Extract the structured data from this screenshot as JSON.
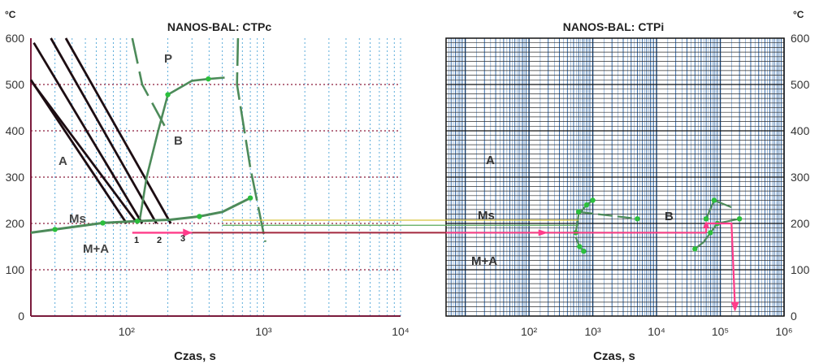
{
  "chart_data": [
    {
      "type": "line",
      "title": "NANOS-BAL: CTPc",
      "xlabel": "Czas, s",
      "ylabel": "°C",
      "xscale": "log",
      "xlim": [
        20,
        10000
      ],
      "ylim": [
        0,
        600
      ],
      "y_ticks": [
        "0",
        "100",
        "200",
        "300",
        "400",
        "500",
        "600"
      ],
      "x_ticks": [
        {
          "exp": 2,
          "label": "10²"
        },
        {
          "exp": 3,
          "label": "10³"
        },
        {
          "exp": 4,
          "label": "10⁴"
        }
      ],
      "grid": true,
      "regions": [
        "P",
        "B",
        "A",
        "Ms",
        "M+A"
      ],
      "cooling_curve_labels": [
        "1",
        "2",
        "3"
      ],
      "series": [
        {
          "values": [
            [
              21,
              590
            ],
            [
              130,
              200
            ]
          ]
        },
        {
          "values": [
            [
              28,
              600
            ],
            [
              165,
              200
            ]
          ]
        },
        {
          "values": [
            [
              20,
              510
            ],
            [
              100,
              200
            ]
          ]
        },
        {
          "values": [
            [
              36,
              600
            ],
            [
              210,
              200
            ]
          ]
        },
        {
          "values": [
            [
              21,
              500
            ],
            [
              120,
              200
            ]
          ]
        }
      ],
      "ms_curve": [
        [
          20,
          180
        ],
        [
          30,
          187
        ],
        [
          67,
          201
        ],
        [
          120,
          205
        ],
        [
          210,
          208
        ],
        [
          340,
          215
        ],
        [
          500,
          225
        ],
        [
          800,
          255
        ]
      ],
      "bainite_start": [
        [
          125,
          210
        ],
        [
          140,
          300
        ],
        [
          170,
          400
        ],
        [
          200,
          478
        ],
        [
          300,
          508
        ],
        [
          395,
          512
        ],
        [
          520,
          515
        ]
      ],
      "pearlite_start": [
        [
          110,
          600
        ],
        [
          130,
          500
        ],
        [
          190,
          410
        ]
      ],
      "transformation_end": [
        [
          650,
          600
        ],
        [
          640,
          500
        ],
        [
          800,
          320
        ],
        [
          1030,
          160
        ]
      ],
      "arrow_t": [
        [
          110,
          180
        ],
        [
          300,
          180
        ]
      ]
    },
    {
      "type": "line",
      "title": "NANOS-BAL: CTPi",
      "xlabel": "Czas, s",
      "ylabel": "°C",
      "xscale": "log",
      "xlim": [
        5,
        1000000
      ],
      "ylim": [
        0,
        600
      ],
      "y_ticks": [
        "0",
        "100",
        "200",
        "300",
        "400",
        "500",
        "600"
      ],
      "x_ticks": [
        {
          "exp": 2,
          "label": "10²"
        },
        {
          "exp": 3,
          "label": "10³"
        },
        {
          "exp": 4,
          "label": "10⁴"
        },
        {
          "exp": 5,
          "label": "10⁵"
        },
        {
          "exp": 6,
          "label": "10⁶"
        }
      ],
      "grid": true,
      "regions": [
        "A",
        "Ms",
        "B",
        "M+A"
      ],
      "bainite_start": [
        [
          540,
          180
        ],
        [
          600,
          220
        ],
        [
          800,
          240
        ],
        [
          1000,
          250
        ]
      ],
      "bainite_end": [
        [
          540,
          170
        ],
        [
          620,
          150
        ],
        [
          720,
          140
        ]
      ],
      "bainite_line": [
        [
          600,
          225
        ],
        [
          5000,
          210
        ]
      ],
      "bainite_start_low": [
        [
          40000,
          145
        ],
        [
          55000,
          160
        ],
        [
          70000,
          180
        ],
        [
          90000,
          200
        ],
        [
          200000,
          210
        ]
      ],
      "bainite_start_high": [
        [
          60000,
          210
        ],
        [
          80000,
          250
        ],
        [
          150000,
          235
        ]
      ],
      "isothermal_path": [
        [
          60000,
          180
        ],
        [
          60000,
          200
        ],
        [
          150000,
          200
        ],
        [
          170000,
          20
        ]
      ]
    }
  ]
}
